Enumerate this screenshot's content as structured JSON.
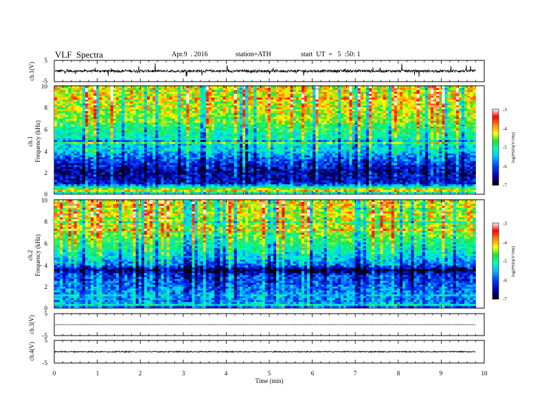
{
  "header": {
    "title": "VLF  Spectra",
    "date": "Apr.9  . 2016",
    "station": "station=ATH",
    "start": "start  UT  =   5  :50: 1"
  },
  "chart_data": [
    {
      "type": "line",
      "id": "ch1-waveform",
      "ylabel": "ch.1(V)",
      "ylim": [
        -5,
        5
      ],
      "yticks": [
        "5",
        "-5"
      ],
      "xlim": [
        0,
        10
      ],
      "x_data_end": 9.8,
      "description_values": {
        "baseline": 0.0,
        "noise_amplitude": 0.6,
        "spike_amplitude": 3.0
      }
    },
    {
      "type": "heatmap",
      "id": "ch1-spectrogram",
      "ylabel_channel": "ch.1",
      "ylabel": "Frequency (kHz)",
      "ylim": [
        0,
        10
      ],
      "yticks": [
        "0",
        "2",
        "4",
        "6",
        "8",
        "10"
      ],
      "xlim": [
        0,
        10
      ],
      "x_data_end": 9.8,
      "colorbar": {
        "label": "log(PSD)(V²/Hz)",
        "min": -7,
        "max": -3,
        "ticks": [
          "-3",
          "-4",
          "-5",
          "-6",
          "-7"
        ]
      },
      "profile_logpsd_by_khz": [
        [
          0,
          -6.3
        ],
        [
          0.2,
          -4.0
        ],
        [
          1,
          -6.4
        ],
        [
          2,
          -6.6
        ],
        [
          3,
          -6.2
        ],
        [
          4,
          -5.6
        ],
        [
          5,
          -5.3
        ],
        [
          6,
          -5.0
        ],
        [
          7,
          -4.6
        ],
        [
          8,
          -4.4
        ],
        [
          9,
          -4.3
        ],
        [
          10,
          -4.3
        ]
      ]
    },
    {
      "type": "heatmap",
      "id": "ch2-spectrogram",
      "ylabel_channel": "ch.2",
      "ylabel": "Frequency (kHz)",
      "ylim": [
        0,
        10
      ],
      "yticks": [
        "0",
        "2",
        "4",
        "6",
        "8",
        "10"
      ],
      "xlim": [
        0,
        10
      ],
      "x_data_end": 9.8,
      "colorbar": {
        "label": "log(PSD)(V²/Hz)",
        "min": -7,
        "max": -3,
        "ticks": [
          "-3",
          "-4",
          "-5",
          "-6",
          "-7"
        ]
      },
      "profile_logpsd_by_khz": [
        [
          0,
          -6.0
        ],
        [
          1,
          -5.8
        ],
        [
          2,
          -6.0
        ],
        [
          3,
          -6.2
        ],
        [
          3.5,
          -6.8
        ],
        [
          4,
          -5.9
        ],
        [
          5,
          -5.4
        ],
        [
          6,
          -5.0
        ],
        [
          7,
          -4.6
        ],
        [
          8,
          -4.4
        ],
        [
          9,
          -4.3
        ],
        [
          10,
          -4.3
        ]
      ]
    },
    {
      "type": "line",
      "id": "ch3-waveform",
      "ylabel": "ch.3(V)",
      "ylim": [
        -5,
        5
      ],
      "yticks": [
        "5",
        "-5"
      ],
      "xlim": [
        0,
        10
      ],
      "x_data_end": 9.8,
      "description_values": {
        "baseline": 0.0,
        "noise_amplitude": 0.05
      }
    },
    {
      "type": "line",
      "id": "ch4-waveform",
      "ylabel": "ch.4(V)",
      "ylim": [
        -5,
        5
      ],
      "yticks": [
        "5",
        "-5"
      ],
      "xlim": [
        0,
        10
      ],
      "x_data_end": 9.8,
      "description_values": {
        "baseline": 0.0,
        "noise_amplitude": 0.25
      }
    }
  ],
  "xaxis": {
    "label": "Time  (min)",
    "ticks": [
      "0",
      "1",
      "2",
      "3",
      "4",
      "5",
      "6",
      "7",
      "8",
      "9",
      "10"
    ]
  },
  "colors": {
    "scale": [
      "#000000",
      "#0000b0",
      "#0040ff",
      "#00c8ff",
      "#00ffb0",
      "#20e040",
      "#ffff00",
      "#ff8000",
      "#ff0000",
      "#ffffff"
    ]
  }
}
